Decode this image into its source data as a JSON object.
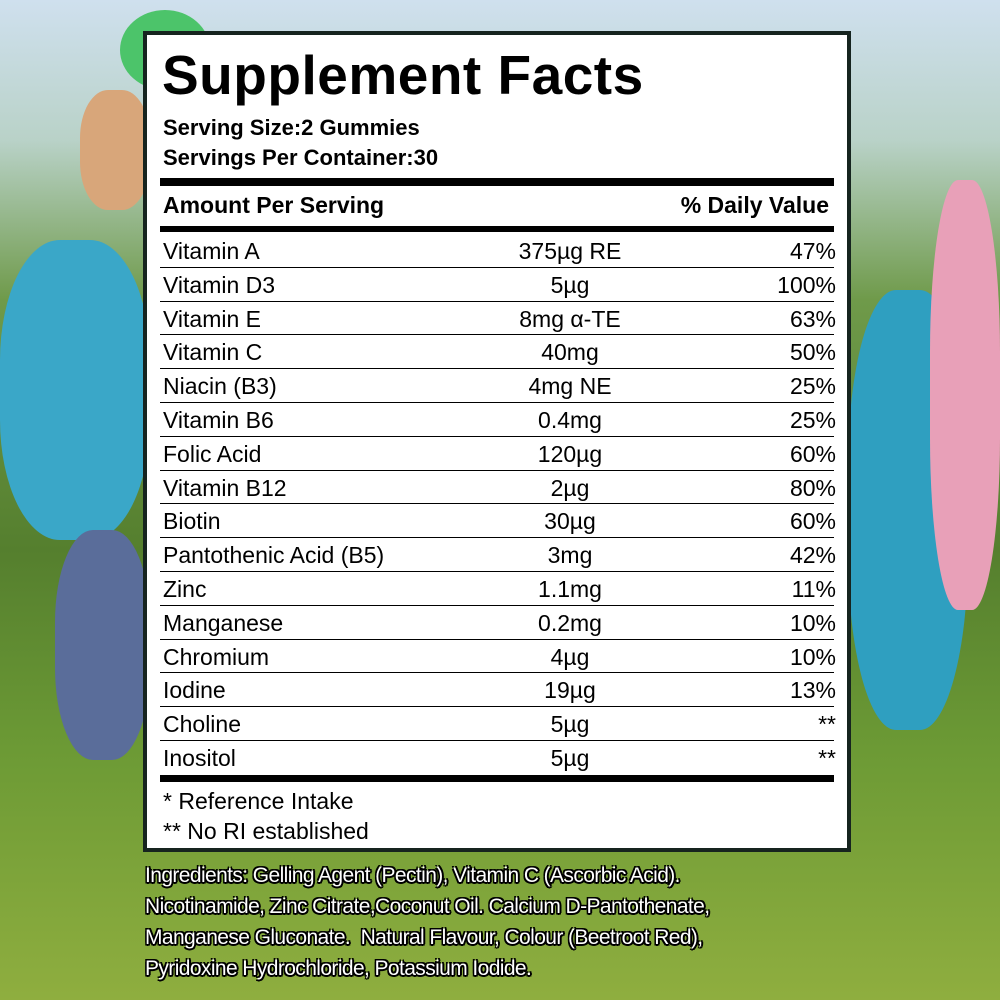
{
  "label": {
    "title": "Supplement Facts",
    "serving_size": "Serving Size:2 Gummies",
    "servings_per_container": "Servings Per Container:30",
    "header_amount": "Amount Per Serving",
    "header_dv": "% Daily Value",
    "rows": [
      {
        "name": "Vitamin A",
        "amount": "375µg RE",
        "dv": "47%"
      },
      {
        "name": "Vitamin D3",
        "amount": "5µg",
        "dv": "100%"
      },
      {
        "name": "Vitamin E",
        "amount": "8mg α-TE",
        "dv": "63%"
      },
      {
        "name": "Vitamin C",
        "amount": "40mg",
        "dv": "50%"
      },
      {
        "name": "Niacin (B3)",
        "amount": "4mg NE",
        "dv": "25%"
      },
      {
        "name": "Vitamin B6",
        "amount": "0.4mg",
        "dv": "25%"
      },
      {
        "name": "Folic Acid",
        "amount": "120µg",
        "dv": "60%"
      },
      {
        "name": "Vitamin B12",
        "amount": "2µg",
        "dv": "80%"
      },
      {
        "name": "Biotin",
        "amount": "30µg",
        "dv": "60%"
      },
      {
        "name": "Pantothenic Acid (B5)",
        "amount": "3mg",
        "dv": "42%"
      },
      {
        "name": "Zinc",
        "amount": "1.1mg",
        "dv": "11%"
      },
      {
        "name": "Manganese",
        "amount": "0.2mg",
        "dv": "10%"
      },
      {
        "name": "Chromium",
        "amount": "4µg",
        "dv": "10%"
      },
      {
        "name": "Iodine",
        "amount": "19µg",
        "dv": "13%"
      },
      {
        "name": "Choline",
        "amount": "5µg",
        "dv": "**"
      },
      {
        "name": "Inositol",
        "amount": "5µg",
        "dv": "**"
      }
    ],
    "footnote_1": "* Reference Intake",
    "footnote_2": "** No RI established"
  },
  "ingredients": {
    "lines": [
      "Ingredients: Gelling Agent (Pectin), Vitamin C (Ascorbic Acid).",
      "Nicotinamide, Zinc Citrate,Coconut Oil. Calcium D-Pantothenate,",
      "Manganese Gluconate.  Natural Flavour, Colour (Beetroot Red),",
      "Pyridoxine Hydrochloride, Potassium Iodide."
    ]
  }
}
